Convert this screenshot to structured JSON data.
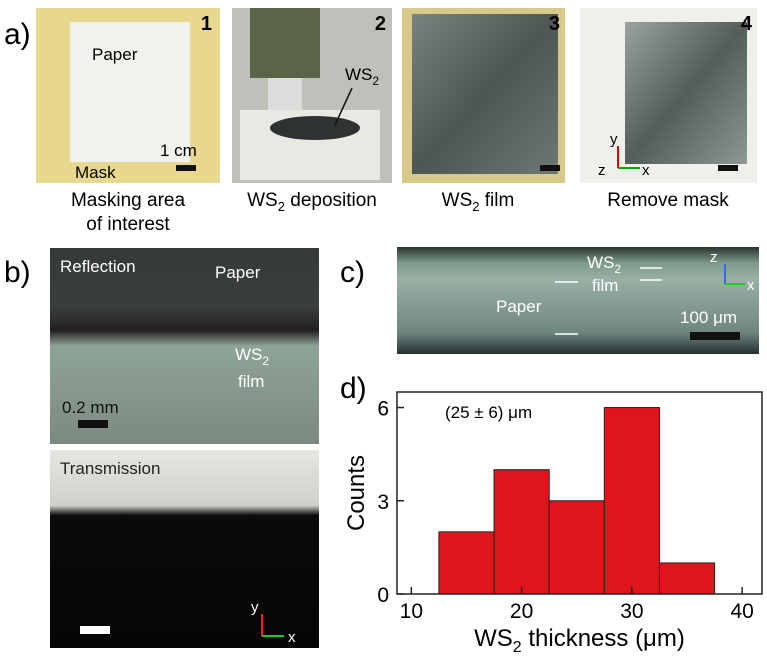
{
  "figure": {
    "panel_labels": {
      "a": "a)",
      "b": "b)",
      "c": "c)",
      "d": "d)"
    },
    "a": {
      "numbers": [
        "1",
        "2",
        "3",
        "4"
      ],
      "paper": "Paper",
      "mask": "Mask",
      "scale": "1 cm",
      "ws2": [
        "WS",
        "2"
      ],
      "axes": [
        "y",
        "z",
        "x"
      ],
      "captions": [
        [
          "Masking area",
          "of interest"
        ],
        [
          "WS",
          "2",
          " deposition"
        ],
        [
          "WS",
          "2",
          " film"
        ],
        [
          "Remove mask"
        ]
      ]
    },
    "b": {
      "reflection": "Reflection",
      "paper": "Paper",
      "film": [
        "WS",
        "2",
        "film"
      ],
      "scale": "0.2 mm",
      "transmission": "Transmission",
      "axes": [
        "y",
        "x"
      ]
    },
    "c": {
      "film": [
        "WS",
        "2",
        "film"
      ],
      "paper": "Paper",
      "scale": "100 μm",
      "axes": [
        "z",
        "x"
      ]
    }
  },
  "chart_data": {
    "type": "histogram",
    "annotation": "(25 ± 6) μm",
    "x_label": [
      "WS",
      "2",
      " thickness (μm)"
    ],
    "y_label": "Counts",
    "bins": [
      12.5,
      17.5,
      22.5,
      27.5,
      32.5,
      37.5
    ],
    "counts": [
      2,
      4,
      3,
      6,
      1
    ],
    "color": "#e0151b",
    "xlim": [
      8.7,
      41.8
    ],
    "xticks": [
      10,
      20,
      30,
      40
    ],
    "ylim": [
      0,
      6.5
    ],
    "yticks": [
      0,
      3,
      6
    ]
  }
}
